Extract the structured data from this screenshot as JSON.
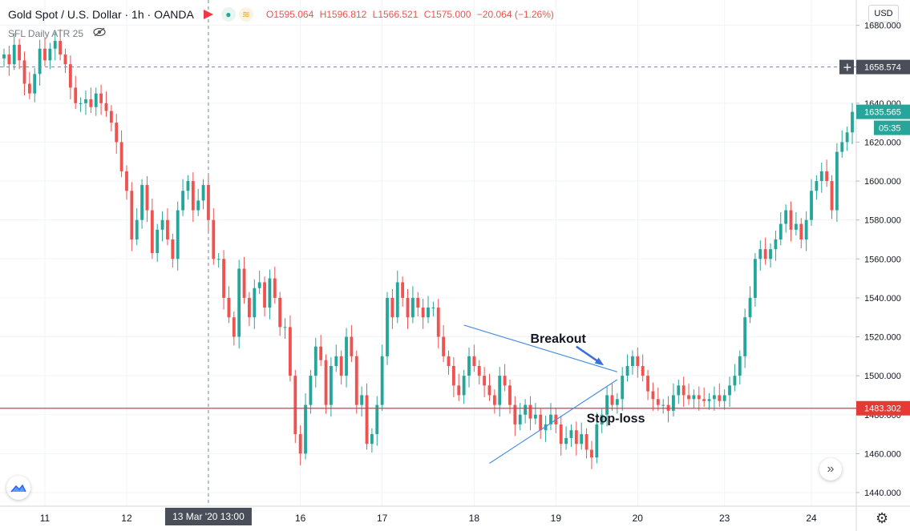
{
  "header": {
    "symbol": "Gold Spot / U.S. Dollar · 1h · OANDA",
    "symbol_text": "Gold Spot / U.S. Dollar",
    "interval": "1h",
    "exchange": "OANDA",
    "open": "O1595.064",
    "high": "H1596.812",
    "low": "L1566.521",
    "close": "C1575.000",
    "change": "−20.064 (−1.26%)",
    "icons": [
      "flag-icon",
      "dot-icon",
      "wave-icon"
    ]
  },
  "indicator": {
    "label": "SFL Daily ATR 25",
    "icon": "eye-off-icon"
  },
  "currency_button": "USD",
  "price_axis": {
    "ticks": [
      "1680.000",
      "1660.000",
      "1640.000",
      "1620.000",
      "1600.000",
      "1580.000",
      "1560.000",
      "1540.000",
      "1520.000",
      "1500.000",
      "1480.000",
      "1460.000",
      "1440.000"
    ],
    "crosshair_price": "1658.574",
    "last_price": "1635.565",
    "countdown": "05:35",
    "stop_price": "1483.302"
  },
  "time_axis": {
    "ticks": [
      "11",
      "12",
      "13",
      "16",
      "17",
      "18",
      "19",
      "20",
      "23",
      "24"
    ],
    "crosshair_label": "13 Mar '20   13:00"
  },
  "annotations": {
    "breakout": "Breakout",
    "stop_loss": "Stop-loss"
  },
  "colors": {
    "up": "#26a69a",
    "down": "#ef5350",
    "stop_line": "#e53935",
    "trendline": "#4a90e2",
    "arrow": "#3a6fd8",
    "last_price_bg": "#26a69a",
    "crosshair_bg": "#4a4e59"
  },
  "chart_data": {
    "type": "candlestick",
    "title": "Gold Spot / U.S. Dollar",
    "interval": "1h",
    "ylim": [
      1433,
      1693
    ],
    "y_ticks": [
      1680,
      1660,
      1640,
      1620,
      1600,
      1580,
      1560,
      1540,
      1520,
      1500,
      1480,
      1460,
      1440
    ],
    "x_ticks": [
      "11",
      "12",
      "13",
      "16",
      "17",
      "18",
      "19",
      "20",
      "23",
      "24"
    ],
    "grid": true,
    "closes": [
      1665,
      1660,
      1670,
      1662,
      1650,
      1645,
      1655,
      1668,
      1662,
      1668,
      1672,
      1665,
      1660,
      1648,
      1640,
      1640,
      1642,
      1638,
      1645,
      1640,
      1636,
      1630,
      1620,
      1605,
      1595,
      1570,
      1580,
      1598,
      1585,
      1563,
      1575,
      1580,
      1570,
      1560,
      1585,
      1595,
      1600,
      1585,
      1590,
      1598,
      1580,
      1560,
      1560,
      1540,
      1530,
      1520,
      1555,
      1540,
      1530,
      1545,
      1548,
      1535,
      1550,
      1540,
      1525,
      1525,
      1500,
      1470,
      1460,
      1485,
      1500,
      1515,
      1508,
      1485,
      1505,
      1510,
      1500,
      1520,
      1510,
      1485,
      1490,
      1465,
      1470,
      1485,
      1510,
      1540,
      1530,
      1548,
      1540,
      1530,
      1540,
      1535,
      1530,
      1535,
      1535,
      1520,
      1510,
      1505,
      1495,
      1490,
      1500,
      1510,
      1505,
      1500,
      1495,
      1490,
      1485,
      1500,
      1495,
      1485,
      1475,
      1480,
      1485,
      1478,
      1480,
      1472,
      1475,
      1480,
      1475,
      1465,
      1468,
      1472,
      1465,
      1470,
      1462,
      1458,
      1475,
      1480,
      1490,
      1485,
      1488,
      1500,
      1505,
      1510,
      1505,
      1500,
      1492,
      1488,
      1485,
      1485,
      1482,
      1490,
      1495,
      1490,
      1488,
      1490,
      1488,
      1487,
      1488,
      1490,
      1487,
      1490,
      1495,
      1500,
      1510,
      1530,
      1540,
      1560,
      1565,
      1560,
      1565,
      1570,
      1578,
      1585,
      1575,
      1578,
      1570,
      1580,
      1595,
      1600,
      1605,
      1600,
      1585,
      1615,
      1620,
      1625,
      1635
    ],
    "last_close": 1635.565,
    "hlines": [
      {
        "label": "stop-loss",
        "value": 1483.302
      },
      {
        "label": "crosshair",
        "value": 1658.574
      }
    ],
    "trendlines": [
      {
        "from": [
          90,
          1526
        ],
        "to": [
          120,
          1502
        ]
      },
      {
        "from": [
          95,
          1455
        ],
        "to": [
          120,
          1498
        ]
      }
    ],
    "crosshair_index": 40,
    "annotations": [
      "Breakout",
      "Stop-loss"
    ]
  }
}
